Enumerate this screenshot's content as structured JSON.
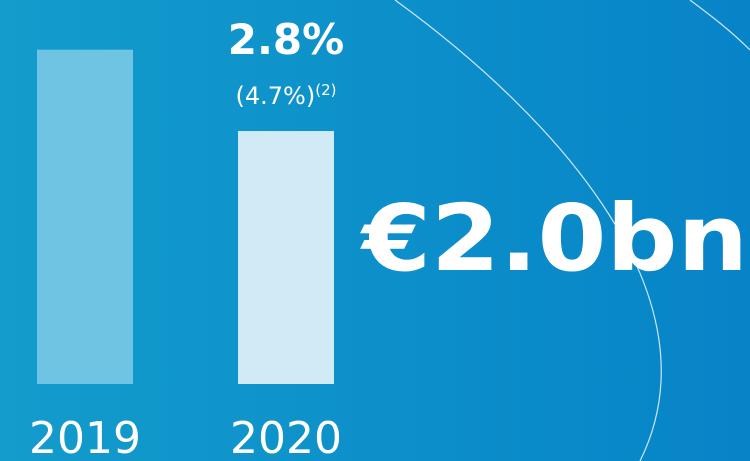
{
  "chart_data": {
    "type": "bar",
    "categories": [
      "2019",
      "2020"
    ],
    "values": [
      3.7,
      2.8
    ],
    "value_labels": [
      null,
      "2.8%"
    ],
    "colors": [
      "#6fc3e3",
      "#d0eaf6"
    ],
    "ylim": [
      0,
      4.25
    ],
    "sub_label": {
      "text": "(4.7%)",
      "superscript": "(2)"
    },
    "headline": "€2.0bn"
  }
}
